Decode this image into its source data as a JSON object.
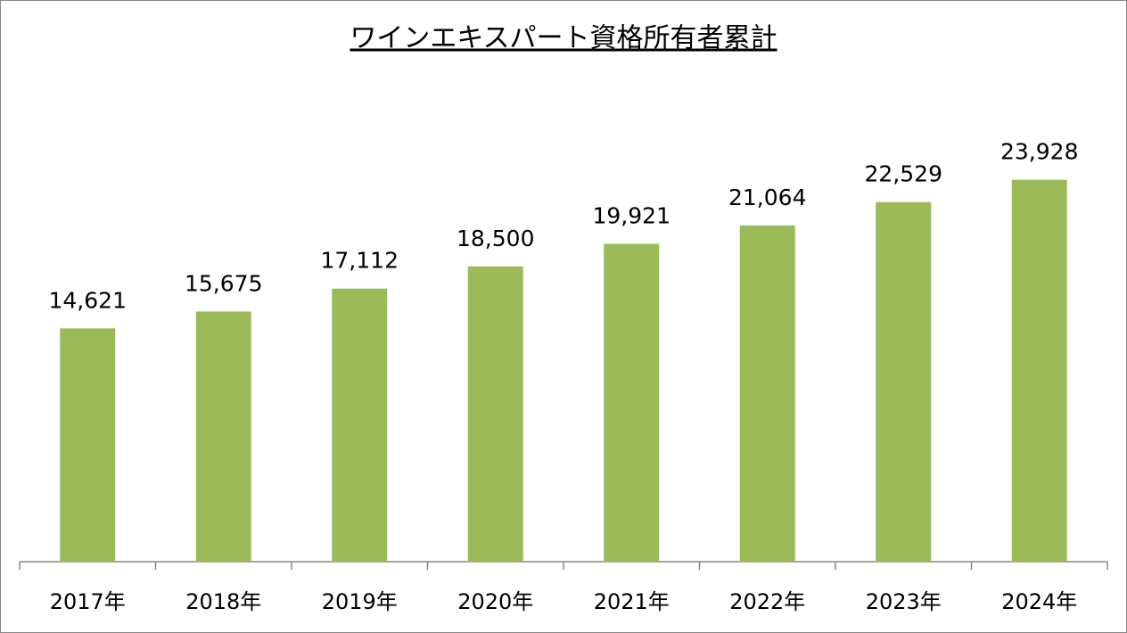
{
  "chart_data": {
    "type": "bar",
    "title": "ワインエキスパート資格所有者累計",
    "categories": [
      "2017年",
      "2018年",
      "2019年",
      "2020年",
      "2021年",
      "2022年",
      "2023年",
      "2024年"
    ],
    "values": [
      14621,
      15675,
      17112,
      18500,
      19921,
      21064,
      22529,
      23928
    ],
    "value_labels": [
      "14,621",
      "15,675",
      "17,112",
      "18,500",
      "19,921",
      "21,064",
      "22,529",
      "23,928"
    ],
    "color": "#9bbb59",
    "ylim": [
      0,
      30000
    ]
  }
}
